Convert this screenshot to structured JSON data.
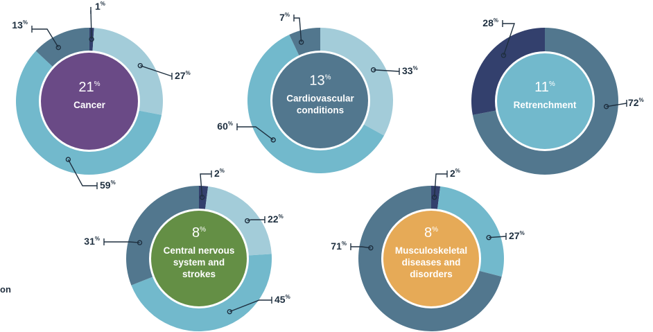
{
  "page": {
    "left_fragment": "on"
  },
  "chart_data": [
    {
      "type": "donut",
      "center_value": "21",
      "center_unit": "%",
      "center_label": [
        "Cancer"
      ],
      "center_color": "#6a4a86",
      "slices": [
        {
          "value": 1,
          "label": "1",
          "color": "#33406d"
        },
        {
          "value": 27,
          "label": "27",
          "color": "#a3ccd9"
        },
        {
          "value": 59,
          "label": "59",
          "color": "#72b9cc"
        },
        {
          "value": 13,
          "label": "13",
          "color": "#52778e"
        }
      ]
    },
    {
      "type": "donut",
      "center_value": "13",
      "center_unit": "%",
      "center_label": [
        "Cardiovascular",
        "conditions"
      ],
      "center_color": "#52778e",
      "slices": [
        {
          "value": 33,
          "label": "33",
          "color": "#a3ccd9"
        },
        {
          "value": 60,
          "label": "60",
          "color": "#72b9cc"
        },
        {
          "value": 7,
          "label": "7",
          "color": "#52778e"
        }
      ]
    },
    {
      "type": "donut",
      "center_value": "11",
      "center_unit": "%",
      "center_label": [
        "Retrenchment"
      ],
      "center_color": "#72b9cc",
      "slices": [
        {
          "value": 72,
          "label": "72",
          "color": "#52778e"
        },
        {
          "value": 28,
          "label": "28",
          "color": "#33406d"
        }
      ]
    },
    {
      "type": "donut",
      "center_value": "8",
      "center_unit": "%",
      "center_label": [
        "Central nervous",
        "system and",
        "strokes"
      ],
      "center_color": "#648f45",
      "slices": [
        {
          "value": 2,
          "label": "2",
          "color": "#33406d"
        },
        {
          "value": 22,
          "label": "22",
          "color": "#a3ccd9"
        },
        {
          "value": 45,
          "label": "45",
          "color": "#72b9cc"
        },
        {
          "value": 31,
          "label": "31",
          "color": "#52778e"
        }
      ]
    },
    {
      "type": "donut",
      "center_value": "8",
      "center_unit": "%",
      "center_label": [
        "Musculoskeletal",
        "diseases and",
        "disorders"
      ],
      "center_color": "#e6aa57",
      "slices": [
        {
          "value": 2,
          "label": "2",
          "color": "#33406d"
        },
        {
          "value": 27,
          "label": "27",
          "color": "#72b9cc"
        },
        {
          "value": 71,
          "label": "71",
          "color": "#52778e"
        }
      ]
    }
  ]
}
